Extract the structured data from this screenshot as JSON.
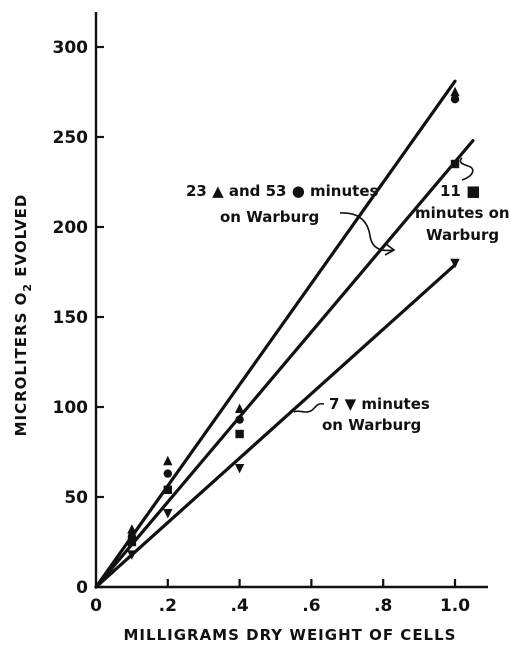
{
  "chart_data": {
    "type": "scatter",
    "title": "",
    "xlabel": "MILLIGRAMS DRY WEIGHT OF CELLS",
    "ylabel_parts": [
      "MICROLITERS O",
      "2",
      " EVOLVED"
    ],
    "xlim": [
      0,
      1.08
    ],
    "ylim": [
      0,
      320
    ],
    "x_ticks": [
      0,
      0.2,
      0.4,
      0.6,
      0.8,
      1.0
    ],
    "x_tick_labels": [
      "0",
      ".2",
      ".4",
      ".6",
      ".8",
      "1.0"
    ],
    "y_ticks": [
      0,
      50,
      100,
      150,
      200,
      250,
      300
    ],
    "y_tick_labels": [
      "0",
      "50",
      "100",
      "150",
      "200",
      "250",
      "300"
    ],
    "grid": false,
    "series": [
      {
        "marker": "triangle-up",
        "points": [
          [
            0.1,
            32
          ],
          [
            0.2,
            70
          ],
          [
            0.4,
            99
          ],
          [
            1.0,
            275
          ]
        ]
      },
      {
        "marker": "circle",
        "points": [
          [
            0.1,
            28
          ],
          [
            0.2,
            63
          ],
          [
            0.4,
            93
          ],
          [
            1.0,
            271
          ]
        ]
      },
      {
        "marker": "square",
        "points": [
          [
            0.1,
            25
          ],
          [
            0.2,
            54
          ],
          [
            0.4,
            85
          ],
          [
            1.0,
            235
          ]
        ]
      },
      {
        "marker": "triangle-down",
        "points": [
          [
            0.1,
            18
          ],
          [
            0.2,
            41
          ],
          [
            0.4,
            66
          ],
          [
            1.0,
            180
          ]
        ]
      }
    ],
    "fit_lines": [
      {
        "from": [
          0,
          0
        ],
        "to": [
          1.0,
          281
        ]
      },
      {
        "from": [
          0,
          0
        ],
        "to": [
          1.05,
          248
        ]
      },
      {
        "from": [
          0,
          0
        ],
        "to": [
          1.0,
          179
        ]
      }
    ],
    "annotations": [
      {
        "lines": [
          "23 ▲ and 53 ● minutes",
          "on Warburg"
        ]
      },
      {
        "lines": [
          "11 ■",
          "minutes on",
          "Warburg"
        ]
      },
      {
        "lines": [
          "7 ▼ minutes",
          "on Warburg"
        ]
      }
    ]
  }
}
